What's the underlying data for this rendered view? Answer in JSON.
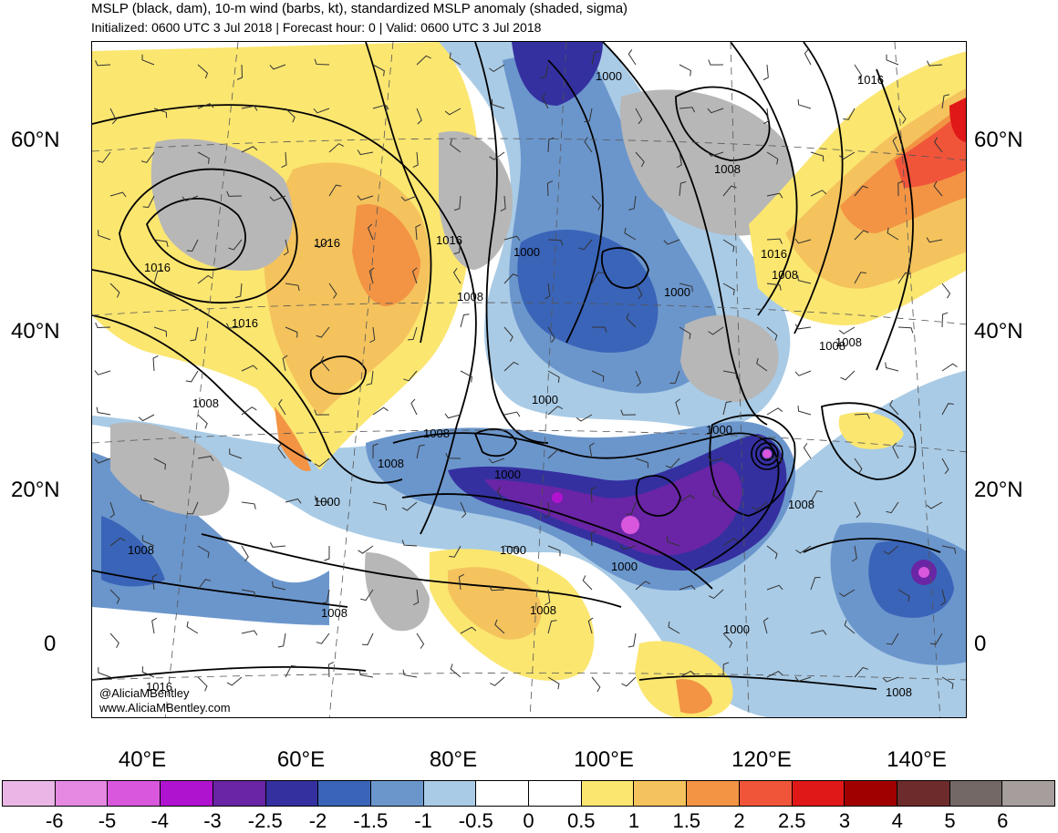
{
  "header": {
    "title": "MSLP (black, dam), 10-m wind (barbs, kt), standardized MSLP anomaly (shaded, sigma)",
    "subtitle": "Initialized: 0600 UTC 3 Jul 2018 | Forecast hour: 0 | Valid: 0600 UTC 3 Jul 2018"
  },
  "axes": {
    "lat_labels": [
      "60°N",
      "40°N",
      "20°N",
      "0"
    ],
    "lon_labels": [
      "40°E",
      "60°E",
      "80°E",
      "100°E",
      "120°E",
      "140°E"
    ]
  },
  "contour_labels": [
    "1000",
    "1008",
    "1016",
    "1016",
    "1016",
    "1016",
    "1016",
    "1008",
    "1000",
    "1000",
    "1008",
    "1016",
    "1008",
    "1000",
    "1008",
    "1008",
    "1000",
    "1000",
    "1000",
    "1008",
    "1000",
    "1000",
    "1008",
    "1008",
    "1008",
    "1000",
    "1008",
    "1008",
    "1016",
    "1008"
  ],
  "credits": {
    "twitter": "@AliciaMBentley",
    "website": "www.AliciaMBentley.com"
  },
  "colorbar": {
    "colors": [
      "#eab6e6",
      "#e589e3",
      "#d957dd",
      "#b013cf",
      "#6925a5",
      "#3430a0",
      "#3a64b8",
      "#6b96cc",
      "#a9cbe6",
      "#ffffff",
      "#ffffff",
      "#fbe670",
      "#f4c35d",
      "#f29444",
      "#f0553a",
      "#e01818",
      "#a00000",
      "#6e2b2b",
      "#746866",
      "#a59e9d"
    ],
    "labels": [
      "-6",
      "-5",
      "-4",
      "-3",
      "-2.5",
      "-2",
      "-1.5",
      "-1",
      "-0.5",
      "0",
      "0.5",
      "1",
      "1.5",
      "2",
      "2.5",
      "3",
      "4",
      "5",
      "6"
    ]
  }
}
